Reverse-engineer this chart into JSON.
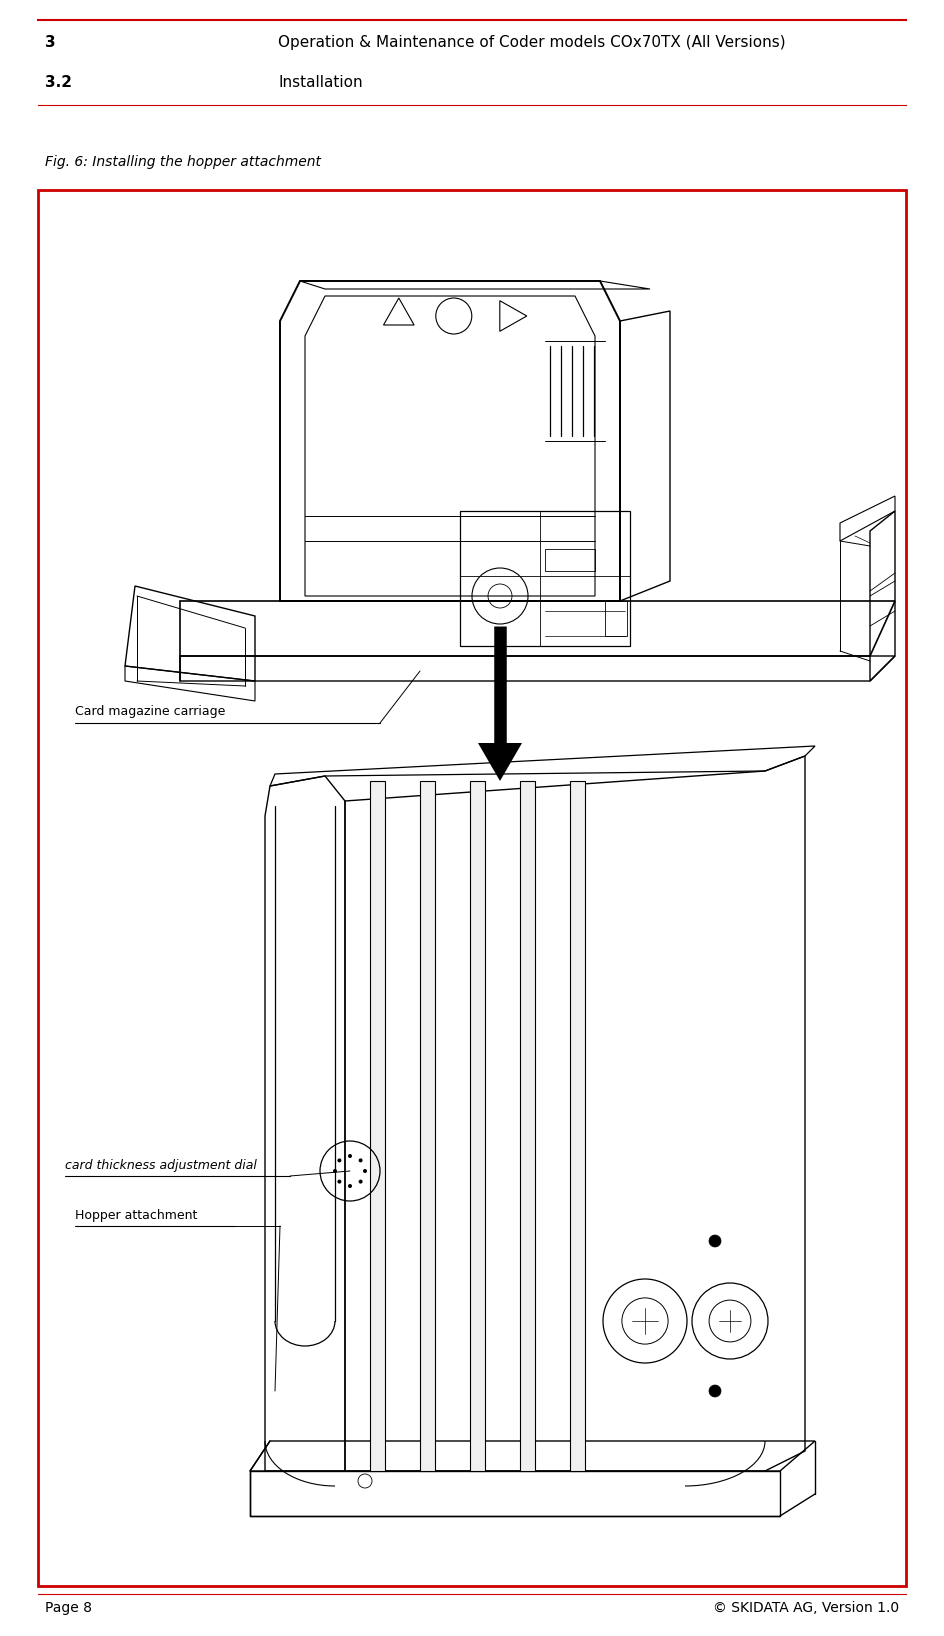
{
  "page_width": 9.44,
  "page_height": 16.36,
  "dpi": 100,
  "bg_color": "#ffffff",
  "border_color": "#cc0000",
  "header_left_1": "3",
  "header_right_1": "Operation & Maintenance of Coder models COx70TX (All Versions)",
  "header_left_2": "3.2",
  "header_right_2": "Installation",
  "fig_caption": "Fig. 6: Installing the hopper attachment",
  "label_card_magazine": "Card magazine carriage",
  "label_card_thickness": "card thickness adjustment dial",
  "label_hopper": "Hopper attachment",
  "footer_left": "Page 8",
  "footer_right": "© SKIDATA AG, Version 1.0",
  "header_font_size": 11,
  "caption_font_size": 10,
  "footer_font_size": 10,
  "label_font_size": 9,
  "text_color": "#000000",
  "line_color": "#000000",
  "header_line_color": "#cc0000"
}
